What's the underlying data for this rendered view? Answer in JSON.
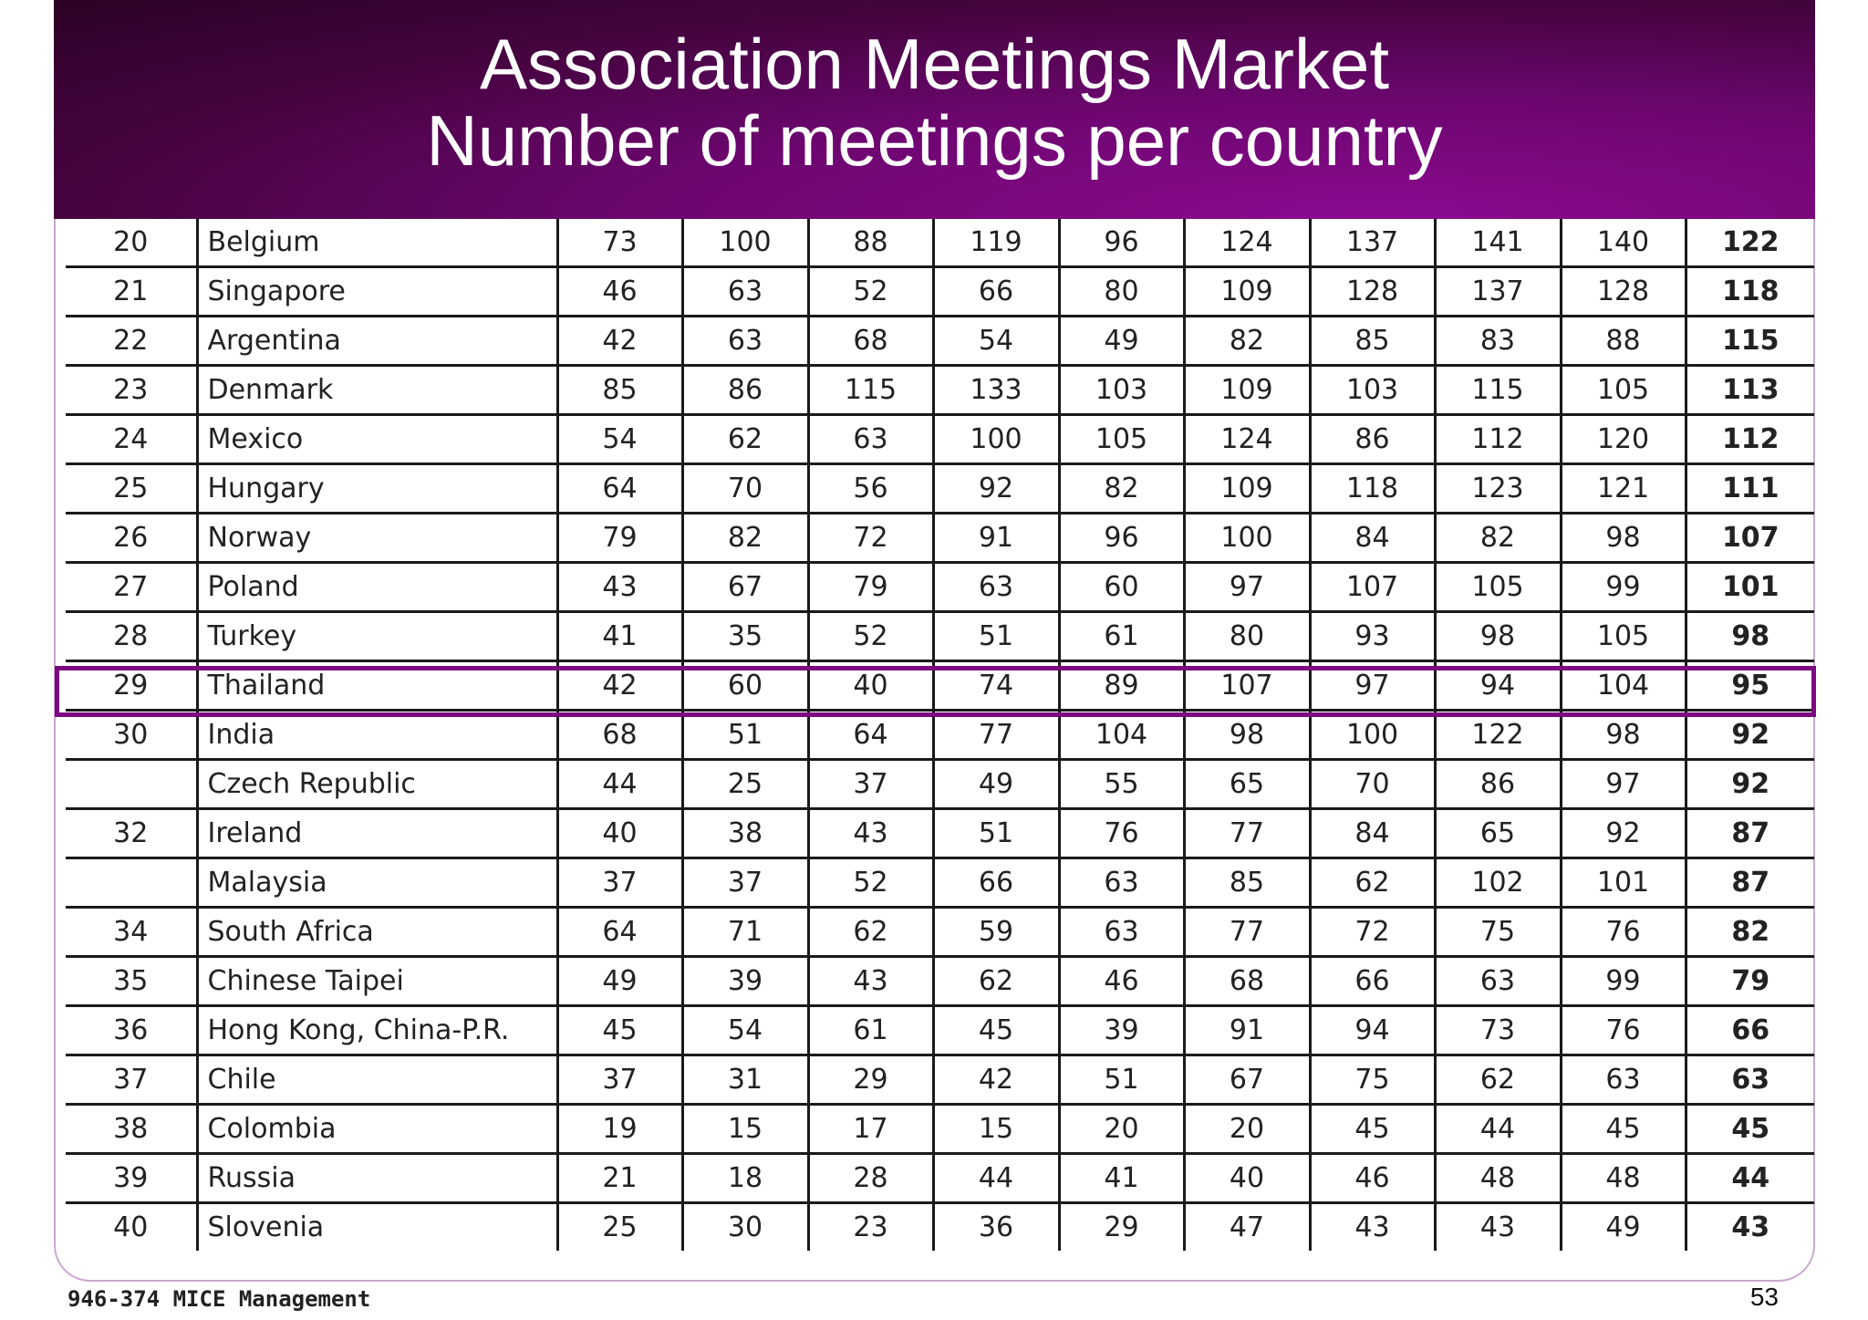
{
  "header": {
    "title_line1": "Association Meetings Market",
    "title_line2": "Number of meetings per country"
  },
  "highlighted_country": "Thailand",
  "colors": {
    "header_dark": "#2c0225",
    "header_accent": "#8a0a8f",
    "highlight_border": "#7a0a7e"
  },
  "table": {
    "rows": [
      {
        "rank": "20",
        "country": "Belgium",
        "values": [
          "73",
          "100",
          "88",
          "119",
          "96",
          "124",
          "137",
          "141",
          "140",
          "122"
        ]
      },
      {
        "rank": "21",
        "country": "Singapore",
        "values": [
          "46",
          "63",
          "52",
          "66",
          "80",
          "109",
          "128",
          "137",
          "128",
          "118"
        ]
      },
      {
        "rank": "22",
        "country": "Argentina",
        "values": [
          "42",
          "63",
          "68",
          "54",
          "49",
          "82",
          "85",
          "83",
          "88",
          "115"
        ]
      },
      {
        "rank": "23",
        "country": "Denmark",
        "values": [
          "85",
          "86",
          "115",
          "133",
          "103",
          "109",
          "103",
          "115",
          "105",
          "113"
        ]
      },
      {
        "rank": "24",
        "country": "Mexico",
        "values": [
          "54",
          "62",
          "63",
          "100",
          "105",
          "124",
          "86",
          "112",
          "120",
          "112"
        ]
      },
      {
        "rank": "25",
        "country": "Hungary",
        "values": [
          "64",
          "70",
          "56",
          "92",
          "82",
          "109",
          "118",
          "123",
          "121",
          "111"
        ]
      },
      {
        "rank": "26",
        "country": "Norway",
        "values": [
          "79",
          "82",
          "72",
          "91",
          "96",
          "100",
          "84",
          "82",
          "98",
          "107"
        ]
      },
      {
        "rank": "27",
        "country": "Poland",
        "values": [
          "43",
          "67",
          "79",
          "63",
          "60",
          "97",
          "107",
          "105",
          "99",
          "101"
        ]
      },
      {
        "rank": "28",
        "country": "Turkey",
        "values": [
          "41",
          "35",
          "52",
          "51",
          "61",
          "80",
          "93",
          "98",
          "105",
          "98"
        ]
      },
      {
        "rank": "29",
        "country": "Thailand",
        "values": [
          "42",
          "60",
          "40",
          "74",
          "89",
          "107",
          "97",
          "94",
          "104",
          "95"
        ]
      },
      {
        "rank": "30",
        "country": "India",
        "values": [
          "68",
          "51",
          "64",
          "77",
          "104",
          "98",
          "100",
          "122",
          "98",
          "92"
        ]
      },
      {
        "rank": "",
        "country": "Czech Republic",
        "values": [
          "44",
          "25",
          "37",
          "49",
          "55",
          "65",
          "70",
          "86",
          "97",
          "92"
        ]
      },
      {
        "rank": "32",
        "country": "Ireland",
        "values": [
          "40",
          "38",
          "43",
          "51",
          "76",
          "77",
          "84",
          "65",
          "92",
          "87"
        ]
      },
      {
        "rank": "",
        "country": "Malaysia",
        "values": [
          "37",
          "37",
          "52",
          "66",
          "63",
          "85",
          "62",
          "102",
          "101",
          "87"
        ]
      },
      {
        "rank": "34",
        "country": "South Africa",
        "values": [
          "64",
          "71",
          "62",
          "59",
          "63",
          "77",
          "72",
          "75",
          "76",
          "82"
        ]
      },
      {
        "rank": "35",
        "country": "Chinese Taipei",
        "values": [
          "49",
          "39",
          "43",
          "62",
          "46",
          "68",
          "66",
          "63",
          "99",
          "79"
        ]
      },
      {
        "rank": "36",
        "country": "Hong Kong, China-P.R.",
        "values": [
          "45",
          "54",
          "61",
          "45",
          "39",
          "91",
          "94",
          "73",
          "76",
          "66"
        ]
      },
      {
        "rank": "37",
        "country": "Chile",
        "values": [
          "37",
          "31",
          "29",
          "42",
          "51",
          "67",
          "75",
          "62",
          "63",
          "63"
        ]
      },
      {
        "rank": "38",
        "country": "Colombia",
        "values": [
          "19",
          "15",
          "17",
          "15",
          "20",
          "20",
          "45",
          "44",
          "45",
          "45"
        ]
      },
      {
        "rank": "39",
        "country": "Russia",
        "values": [
          "21",
          "18",
          "28",
          "44",
          "41",
          "40",
          "46",
          "48",
          "48",
          "44"
        ]
      },
      {
        "rank": "40",
        "country": "Slovenia",
        "values": [
          "25",
          "30",
          "23",
          "36",
          "29",
          "47",
          "43",
          "43",
          "49",
          "43"
        ]
      }
    ]
  },
  "footer": {
    "label": "946-374 MICE Management",
    "page_number": "53"
  }
}
